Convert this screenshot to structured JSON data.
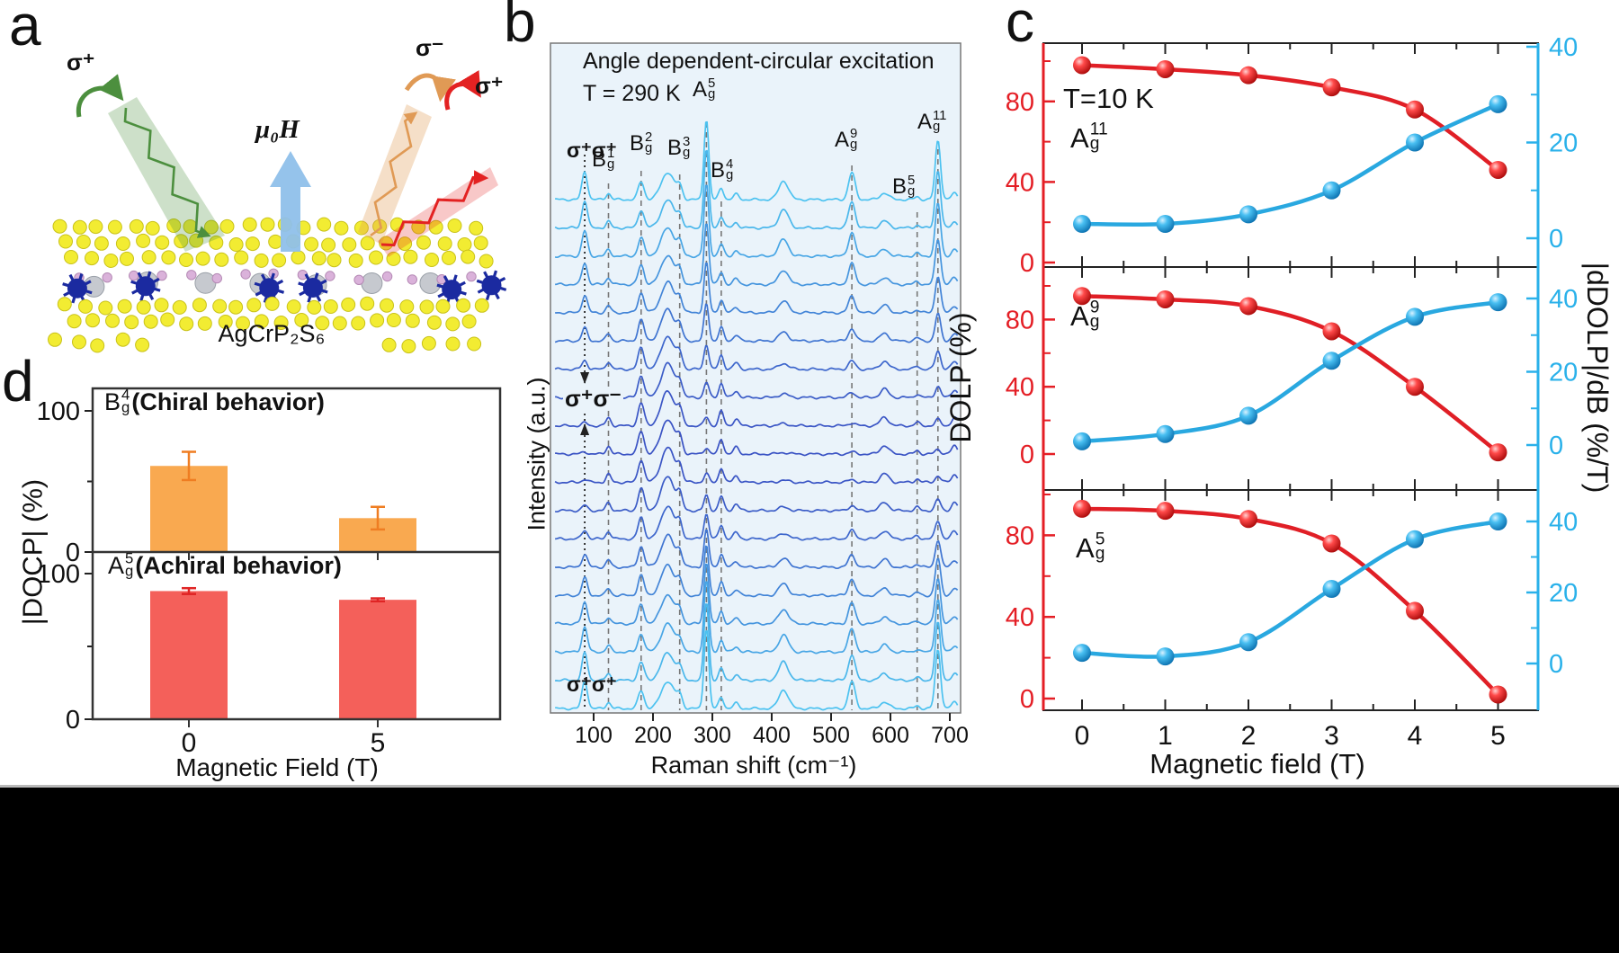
{
  "panels": {
    "a_label": "a",
    "b_label": "b",
    "c_label": "c",
    "d_label": "d"
  },
  "panel_a": {
    "incident": "σ⁺",
    "outgoing_cross": "σ⁻",
    "outgoing_co": "σ⁺",
    "field": "μ₀H",
    "formula": "AgCrP₂S₆",
    "colors": {
      "incident_beam": "#4c8f3e",
      "cross_beam": "#e09a55",
      "co_beam": "#e32222",
      "field_arrow": "#8fc0ea",
      "sulfur": "#f2ec32",
      "silver": "#c6c9cf",
      "phosphorus": "#dab2da",
      "chromium": "#1b2aa0"
    }
  },
  "chart_data": [
    {
      "id": "panel_b",
      "type": "line",
      "title": "Angle dependent-circular excitation",
      "subtitle": "T = 290 K",
      "xlabel": "Raman shift (cm⁻¹)",
      "ylabel": "Intensity (a.u.)",
      "x_ticks": [
        100,
        200,
        300,
        400,
        500,
        600,
        700
      ],
      "x_range_cm": [
        35,
        713
      ],
      "n_spectra": 19,
      "stack_note": "waterfall of polarization-angle-dependent Raman spectra; co-polarized (σ⁺σ⁺) at top and bottom, cross-polarized (σ⁺σ⁻) in the middle",
      "polarization_labels": {
        "top": "σ⁺σ⁺",
        "middle": "σ⁺σ⁻",
        "bottom": "σ⁺σ⁺"
      },
      "sigma_line_cm": 85,
      "peak_labels": [
        {
          "base": "B",
          "sup": "1",
          "sub": "g",
          "cm": 125
        },
        {
          "base": "B",
          "sup": "2",
          "sub": "g",
          "cm": 180
        },
        {
          "base": "B",
          "sup": "3",
          "sub": "g",
          "cm": 245
        },
        {
          "base": "A",
          "sup": "5",
          "sub": "g",
          "cm": 290
        },
        {
          "base": "B",
          "sup": "4",
          "sub": "g",
          "cm": 315
        },
        {
          "base": "A",
          "sup": "9",
          "sub": "g",
          "cm": 535
        },
        {
          "base": "B",
          "sup": "5",
          "sub": "g",
          "cm": 645
        },
        {
          "base": "A",
          "sup": "11",
          "sub": "g",
          "cm": 680
        }
      ],
      "peaks": [
        {
          "cm": 85,
          "w": 4.5,
          "a": 1.05,
          "k": "ag"
        },
        {
          "cm": 125,
          "w": 4,
          "a": 0.3,
          "k": "bg"
        },
        {
          "cm": 180,
          "w": 5,
          "a": 0.85,
          "k": "bg"
        },
        {
          "cm": 225,
          "w": 11,
          "a": 1.3,
          "k": "bg"
        },
        {
          "cm": 245,
          "w": 4.5,
          "a": 0.55,
          "k": "bg"
        },
        {
          "cm": 290,
          "w": 4,
          "a": 3.0,
          "k": "ag"
        },
        {
          "cm": 315,
          "w": 4,
          "a": 0.55,
          "k": "bg"
        },
        {
          "cm": 340,
          "w": 4.5,
          "a": 0.25,
          "k": "bg"
        },
        {
          "cm": 420,
          "w": 8,
          "a": 0.7,
          "k": "ag"
        },
        {
          "cm": 535,
          "w": 5.5,
          "a": 1.0,
          "k": "ag"
        },
        {
          "cm": 590,
          "w": 7,
          "a": 0.32,
          "k": "bg"
        },
        {
          "cm": 645,
          "w": 4,
          "a": 0.13,
          "k": "bg"
        },
        {
          "cm": 680,
          "w": 4.5,
          "a": 2.2,
          "k": "ag"
        },
        {
          "cm": 708,
          "w": 5,
          "a": 0.3,
          "k": "bg"
        }
      ],
      "colors": {
        "trace_light": "#4cc2f0",
        "trace_dark": "#3a53c4",
        "background": "#eaf3fa",
        "dashed": "#777"
      }
    },
    {
      "id": "panel_c",
      "type": "line",
      "note": "T=10 K",
      "xlabel": "Magnetic field (T)",
      "ylabel_left": "DOLP (%)",
      "ylabel_right": "|dDOLP|/dB (%/T)",
      "x": [
        0,
        1,
        2,
        3,
        4,
        5
      ],
      "left_axis": {
        "ticks": [
          0,
          40,
          80
        ],
        "minor": [
          20,
          60,
          100
        ],
        "color": "#e41e25",
        "range": [
          0,
          100
        ]
      },
      "right_axis": {
        "ticks": [
          0,
          20,
          40
        ],
        "minor": [
          10,
          30
        ],
        "color": "#2ab1ea",
        "range": [
          0,
          40
        ]
      },
      "legend_note": "red = DOLP (left axis), blue = |dDOLP|/dB (right axis)",
      "subplots": [
        {
          "mode": {
            "base": "A",
            "sup": "11",
            "sub": "g"
          },
          "dolp": [
            98,
            96,
            93,
            87,
            76,
            46
          ],
          "ddolp_db": [
            3,
            3,
            5,
            10,
            20,
            28
          ]
        },
        {
          "mode": {
            "base": "A",
            "sup": "9",
            "sub": "g"
          },
          "dolp": [
            94,
            92,
            88,
            73,
            40,
            1
          ],
          "ddolp_db": [
            1,
            3,
            8,
            23,
            35,
            39
          ]
        },
        {
          "mode": {
            "base": "A",
            "sup": "5",
            "sub": "g"
          },
          "dolp": [
            93,
            92,
            88,
            76,
            43,
            2
          ],
          "ddolp_db": [
            3,
            2,
            6,
            21,
            35,
            40
          ]
        }
      ]
    },
    {
      "id": "panel_d",
      "type": "bar",
      "xlabel": "Magnetic Field (T)",
      "ylabel": "|DOCP| (%)",
      "categories": [
        "0",
        "5"
      ],
      "yticks": [
        0,
        100
      ],
      "subplots": [
        {
          "mode": {
            "base": "B",
            "sup": "4",
            "sub": "g",
            "suffix": "(Chiral behavior)"
          },
          "values": [
            61,
            24
          ],
          "errors": [
            10,
            8
          ],
          "bar_color": "#f9a950",
          "err_color": "#ef7d22"
        },
        {
          "mode": {
            "base": "A",
            "sup": "5",
            "sub": "g",
            "suffix": "(Achiral behavior)"
          },
          "values": [
            88,
            82
          ],
          "errors": [
            2,
            1
          ],
          "bar_color": "#f4605a",
          "err_color": "#e02424"
        }
      ]
    }
  ]
}
